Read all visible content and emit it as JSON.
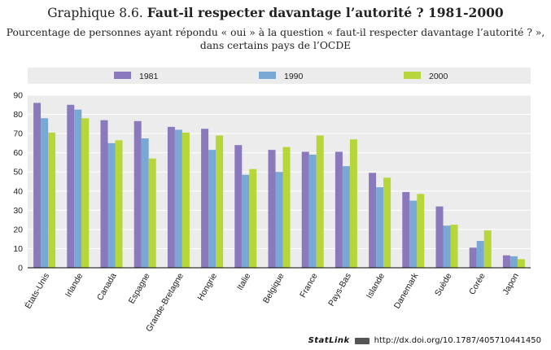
{
  "header": {
    "title_prefix": "Graphique 8.6.",
    "title_main": "Faut-il respecter davantage l’autorité ? 1981-2000",
    "subtitle_line1": "Pourcentage de personnes ayant répondu « oui » à la question « faut-il respecter davantage l’autorité ? »,",
    "subtitle_line2": "dans certains pays de l’OCDE"
  },
  "chart_data": {
    "type": "bar",
    "title": "Faut-il respecter davantage l’autorité ? 1981-2000",
    "xlabel": "",
    "ylabel": "",
    "ylim": [
      0,
      90
    ],
    "yticks": [
      0,
      10,
      20,
      30,
      40,
      50,
      60,
      70,
      80,
      90
    ],
    "grid": true,
    "legend_position": "top",
    "categories": [
      "États-Unis",
      "Irlande",
      "Canada",
      "Espagne",
      "Grande-Bretagne",
      "Hongrie",
      "Italie",
      "Belgique",
      "France",
      "Pays-Bas",
      "Islande",
      "Danemark",
      "Suède",
      "Corée",
      "Japon"
    ],
    "series": [
      {
        "name": "1981",
        "color": "#8b79bd",
        "values": [
          86,
          85,
          77,
          76.5,
          73.5,
          72.5,
          64,
          61.5,
          60.5,
          60.5,
          49.5,
          39.5,
          32,
          10.5,
          6.5
        ]
      },
      {
        "name": "1990",
        "color": "#7aa8d4",
        "values": [
          78,
          82.5,
          65,
          67.5,
          72,
          61.5,
          48.5,
          50,
          59,
          53,
          42,
          35,
          22,
          14,
          6
        ]
      },
      {
        "name": "2000",
        "color": "#b6d63a",
        "values": [
          70.5,
          78,
          66.5,
          57,
          70.5,
          69,
          51.5,
          63,
          69,
          67,
          47,
          38.5,
          22.5,
          19.5,
          4.5
        ]
      }
    ]
  },
  "footer": {
    "statlink_label": "StatLink",
    "statlink_url": "http://dx.doi.org/10.1787/405710441450"
  }
}
